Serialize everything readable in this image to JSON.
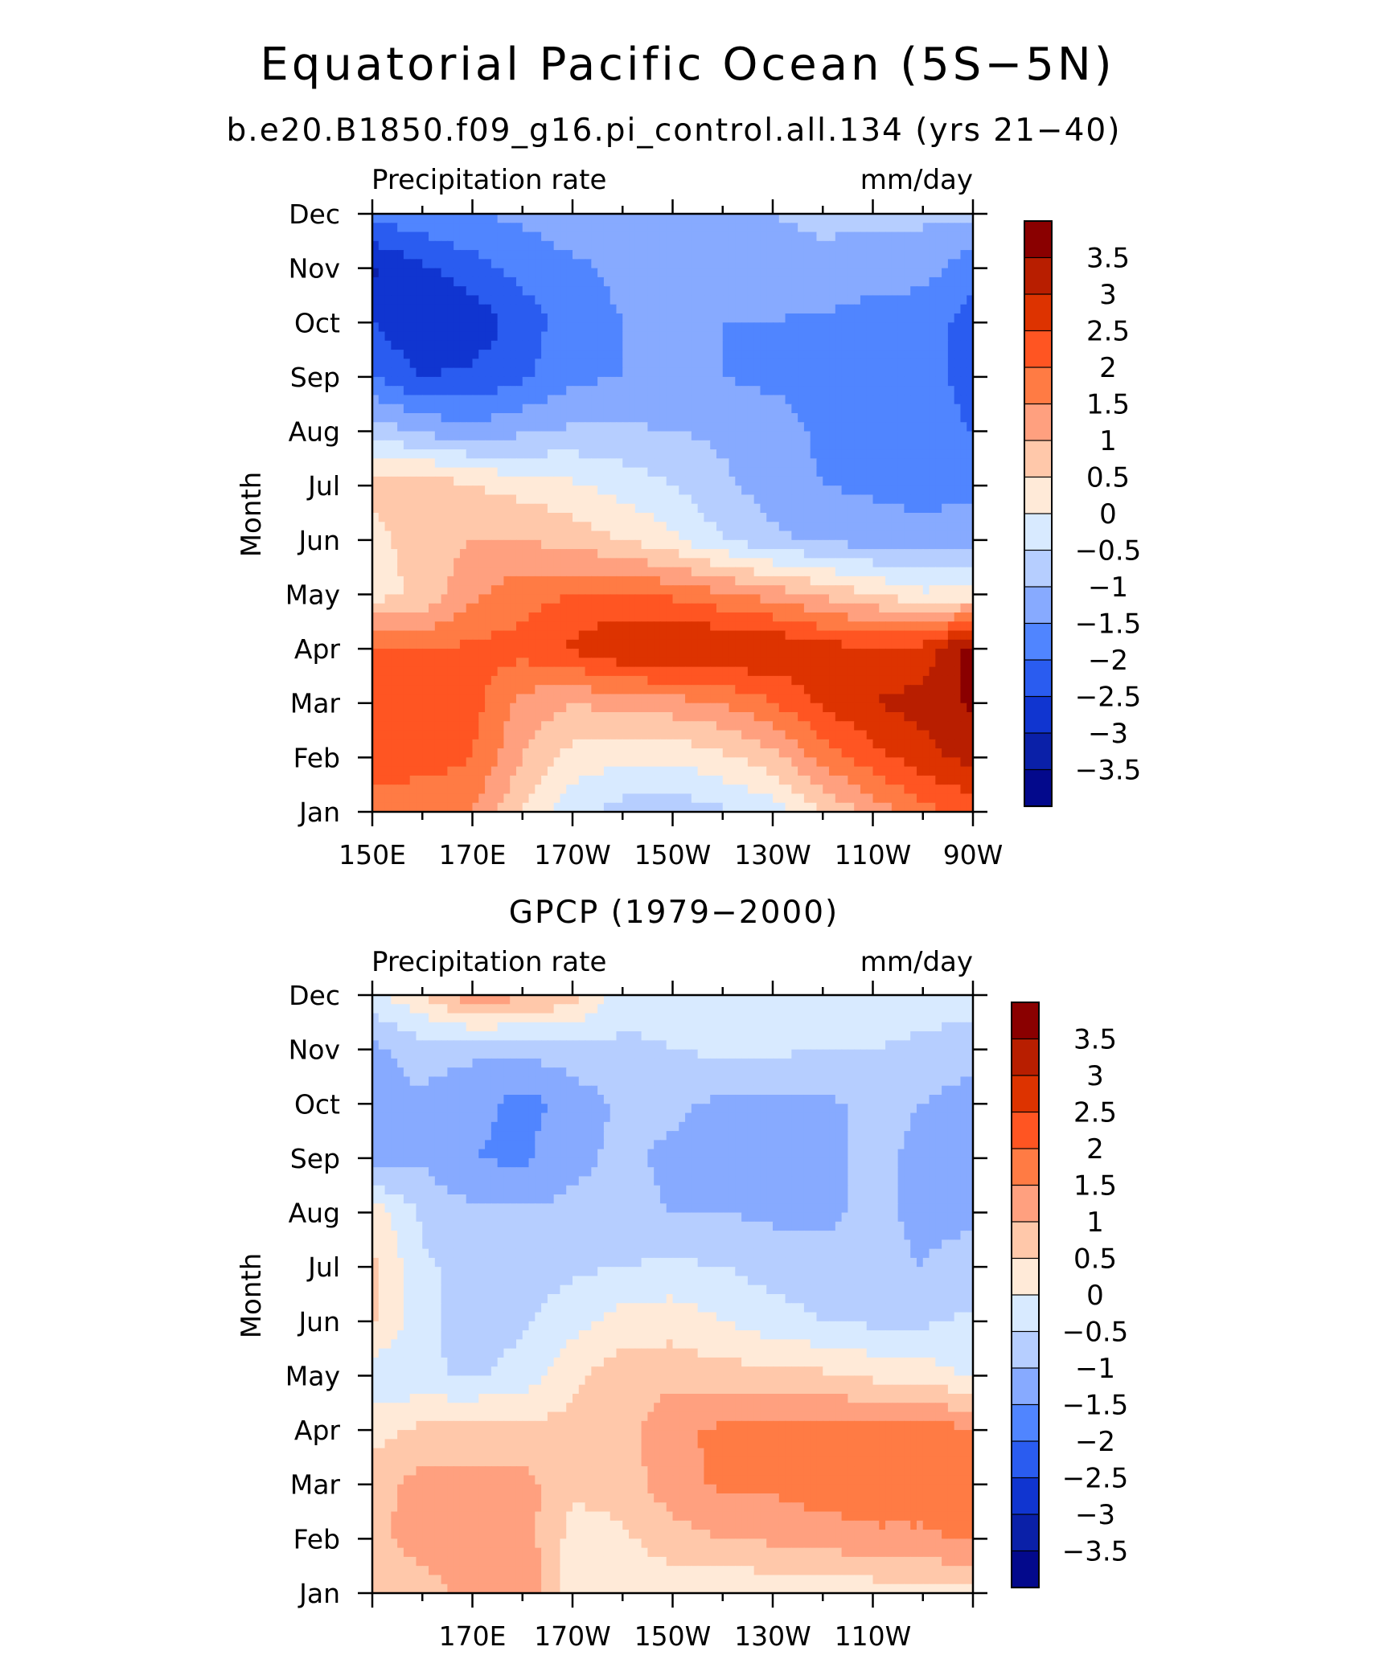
{
  "figure": {
    "title": "Equatorial Pacific Ocean (5S−5N)"
  },
  "colorbar": {
    "labels": [
      "3.5",
      "3",
      "2.5",
      "2",
      "1.5",
      "1",
      "0.5",
      "0",
      "−0.5",
      "−1",
      "−1.5",
      "−2",
      "−2.5",
      "−3",
      "−3.5"
    ],
    "colors": [
      "#8a0000",
      "#b81e00",
      "#dd3300",
      "#ff5522",
      "#ff7b44",
      "#ffa07f",
      "#ffc8aa",
      "#ffead8",
      "#d8eaff",
      "#b6ceff",
      "#87aaff",
      "#5085ff",
      "#2a5cf0",
      "#1035d0",
      "#0a20a8",
      "#03098c"
    ]
  },
  "chart_data": [
    {
      "type": "heatmap",
      "title": "b.e20.B1850.f09_g16.pi_control.all.134 (yrs 21−40)",
      "left_label": "Precipitation rate",
      "right_label": "mm/day",
      "ylabel": "Month",
      "xlabel": "",
      "x_ticks": [
        "150E",
        "170E",
        "170W",
        "150W",
        "130W",
        "110W",
        "90W"
      ],
      "y_ticks": [
        "Jan",
        "Feb",
        "Mar",
        "Apr",
        "May",
        "Jun",
        "Jul",
        "Aug",
        "Sep",
        "Oct",
        "Nov",
        "Dec"
      ],
      "x_range": [
        150,
        270
      ],
      "y_range": [
        1,
        12
      ],
      "units": "mm/day",
      "grid_lon": [
        150,
        160,
        170,
        180,
        190,
        200,
        210,
        220,
        230,
        240,
        250,
        260,
        270
      ],
      "grid_month": [
        1,
        2,
        3,
        4,
        5,
        6,
        7,
        8,
        9,
        10,
        11,
        12
      ],
      "values": [
        [
          1.8,
          1.5,
          1.5,
          0.5,
          -0.3,
          -0.7,
          -0.8,
          -0.6,
          -0.3,
          0.5,
          1.2,
          1.8,
          2.2
        ],
        [
          2.3,
          2.3,
          2.0,
          1.0,
          0.3,
          0.1,
          0.1,
          0.4,
          0.8,
          1.7,
          2.3,
          2.8,
          3.2
        ],
        [
          2.1,
          2.5,
          2.2,
          1.3,
          1.0,
          1.2,
          1.3,
          1.5,
          2.0,
          2.6,
          3.0,
          3.2,
          3.6
        ],
        [
          2.0,
          2.0,
          2.1,
          2.2,
          2.6,
          3.0,
          3.1,
          3.1,
          3.0,
          2.7,
          2.6,
          2.7,
          3.8
        ],
        [
          0.3,
          0.6,
          1.4,
          1.8,
          2.0,
          2.1,
          1.9,
          1.6,
          1.3,
          0.9,
          0.5,
          0.1,
          0.2
        ],
        [
          0.3,
          0.8,
          1.0,
          1.0,
          0.8,
          0.5,
          0.1,
          -0.5,
          -0.9,
          -1.1,
          -1.2,
          -1.3,
          -1.1
        ],
        [
          0.7,
          0.9,
          0.5,
          0.3,
          0.1,
          -0.2,
          -0.5,
          -0.9,
          -1.2,
          -1.5,
          -1.6,
          -1.7,
          -1.7
        ],
        [
          -0.7,
          -1.1,
          -1.3,
          -1.1,
          -0.9,
          -0.9,
          -1.0,
          -1.1,
          -1.3,
          -1.6,
          -1.7,
          -1.8,
          -2.0
        ],
        [
          -2.0,
          -2.5,
          -2.4,
          -2.1,
          -1.6,
          -1.5,
          -1.5,
          -1.5,
          -1.6,
          -1.6,
          -1.7,
          -1.8,
          -2.2
        ],
        [
          -2.5,
          -3.0,
          -2.8,
          -2.3,
          -1.7,
          -1.5,
          -1.5,
          -1.5,
          -1.5,
          -1.6,
          -1.7,
          -1.8,
          -2.2
        ],
        [
          -3.1,
          -2.6,
          -2.2,
          -1.8,
          -1.6,
          -1.4,
          -1.3,
          -1.2,
          -1.2,
          -1.1,
          -1.3,
          -1.3,
          -1.8
        ],
        [
          -1.8,
          -1.6,
          -1.5,
          -1.4,
          -1.2,
          -1.3,
          -1.2,
          -1.0,
          -1.0,
          -0.9,
          -0.9,
          -0.9,
          -0.9
        ]
      ]
    },
    {
      "type": "heatmap",
      "title": "GPCP (1979−2000)",
      "left_label": "Precipitation rate",
      "right_label": "mm/day",
      "ylabel": "Month",
      "xlabel": "",
      "x_ticks": [
        "170E",
        "170W",
        "150W",
        "130W",
        "110W"
      ],
      "y_ticks": [
        "Jan",
        "Feb",
        "Mar",
        "Apr",
        "May",
        "Jun",
        "Jul",
        "Aug",
        "Sep",
        "Oct",
        "Nov",
        "Dec"
      ],
      "x_range": [
        150,
        270
      ],
      "y_range": [
        1,
        12
      ],
      "units": "mm/day",
      "grid_lon": [
        150,
        160,
        170,
        180,
        190,
        200,
        210,
        220,
        230,
        240,
        250,
        260,
        270
      ],
      "grid_month": [
        1,
        2,
        3,
        4,
        5,
        6,
        7,
        8,
        9,
        10,
        11,
        12
      ],
      "values": [
        [
          0.6,
          0.7,
          1.3,
          1.5,
          0.2,
          0.1,
          0.2,
          0.1,
          0.1,
          0.2,
          0.2,
          0.3,
          0.4
        ],
        [
          0.8,
          1.3,
          1.4,
          1.3,
          0.3,
          0.4,
          0.8,
          1.0,
          1.1,
          1.2,
          1.4,
          1.4,
          1.6
        ],
        [
          0.8,
          1.2,
          1.1,
          1.2,
          0.6,
          0.7,
          1.3,
          1.6,
          1.6,
          1.8,
          1.8,
          1.8,
          1.7
        ],
        [
          0.3,
          0.6,
          0.8,
          0.7,
          0.6,
          0.8,
          1.4,
          1.6,
          1.7,
          1.8,
          1.6,
          1.7,
          1.6
        ],
        [
          -0.3,
          -0.4,
          -0.6,
          -0.3,
          0.4,
          0.8,
          0.8,
          0.7,
          0.7,
          0.6,
          0.4,
          0.3,
          -0.1
        ],
        [
          0.6,
          -0.4,
          -0.7,
          -0.6,
          -0.2,
          0.2,
          0.3,
          0.0,
          -0.3,
          -0.5,
          -0.6,
          -0.6,
          -0.4
        ],
        [
          0.6,
          -0.4,
          -0.7,
          -0.7,
          -0.6,
          -0.5,
          -0.4,
          -0.5,
          -0.7,
          -0.8,
          -0.9,
          -1.0,
          -0.8
        ],
        [
          0.3,
          -0.6,
          -0.9,
          -0.9,
          -0.9,
          -0.9,
          -1.0,
          -1.0,
          -1.1,
          -1.1,
          -0.9,
          -1.1,
          -1.1
        ],
        [
          -1.3,
          -1.1,
          -1.5,
          -1.6,
          -1.1,
          -0.9,
          -1.1,
          -1.2,
          -1.2,
          -1.1,
          -0.9,
          -1.1,
          -1.2
        ],
        [
          -1.1,
          -1.1,
          -1.3,
          -1.7,
          -1.3,
          -0.9,
          -0.9,
          -1.1,
          -1.2,
          -1.1,
          -0.9,
          -1.0,
          -1.3
        ],
        [
          -1.1,
          -0.8,
          -0.9,
          -0.9,
          -0.7,
          -0.6,
          -0.5,
          -0.4,
          -0.4,
          -0.5,
          -0.5,
          -0.6,
          -0.7
        ],
        [
          -0.2,
          0.5,
          1.4,
          1.1,
          0.8,
          -0.3,
          -0.3,
          -0.3,
          -0.3,
          -0.2,
          -0.2,
          -0.3,
          -0.3
        ]
      ]
    }
  ]
}
